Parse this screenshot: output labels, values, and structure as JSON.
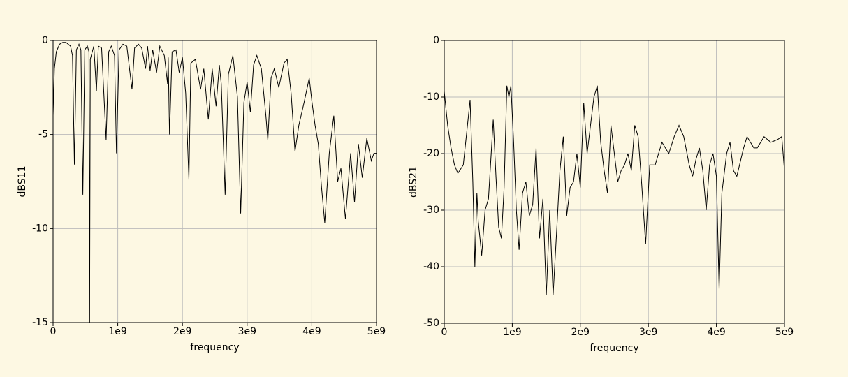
{
  "chart_data": [
    {
      "type": "line",
      "ylabel": "dBS11",
      "xlabel": "frequency",
      "color": "#000000",
      "grid": true,
      "xlim": [
        0,
        5000000000.0
      ],
      "ylim": [
        -15,
        0
      ],
      "xticks": [
        0,
        {
          "value": 1000000000.0,
          "label": "1e9"
        },
        {
          "value": 2000000000.0,
          "label": "2e9"
        },
        {
          "value": 3000000000.0,
          "label": "3e9"
        },
        {
          "value": 4000000000.0,
          "label": "4e9"
        },
        {
          "value": 5000000000.0,
          "label": "5e9"
        }
      ],
      "yticks": [
        0,
        -5,
        -10,
        -15
      ],
      "x": [
        0,
        20000000.0,
        50000000.0,
        100000000.0,
        150000000.0,
        200000000.0,
        270000000.0,
        300000000.0,
        330000000.0,
        360000000.0,
        400000000.0,
        430000000.0,
        460000000.0,
        490000000.0,
        530000000.0,
        555000000.0,
        565000000.0,
        575000000.0,
        590000000.0,
        630000000.0,
        670000000.0,
        700000000.0,
        750000000.0,
        820000000.0,
        860000000.0,
        900000000.0,
        950000000.0,
        980000000.0,
        1020000000.0,
        1080000000.0,
        1140000000.0,
        1220000000.0,
        1260000000.0,
        1320000000.0,
        1370000000.0,
        1430000000.0,
        1460000000.0,
        1500000000.0,
        1540000000.0,
        1600000000.0,
        1650000000.0,
        1720000000.0,
        1770000000.0,
        1780000000.0,
        1800000000.0,
        1840000000.0,
        1900000000.0,
        1950000000.0,
        2000000000.0,
        2050000000.0,
        2100000000.0,
        2130000000.0,
        2200000000.0,
        2280000000.0,
        2330000000.0,
        2400000000.0,
        2460000000.0,
        2520000000.0,
        2570000000.0,
        2600000000.0,
        2660000000.0,
        2710000000.0,
        2780000000.0,
        2850000000.0,
        2900000000.0,
        2950000000.0,
        3000000000.0,
        3050000000.0,
        3100000000.0,
        3150000000.0,
        3220000000.0,
        3290000000.0,
        3320000000.0,
        3370000000.0,
        3420000000.0,
        3490000000.0,
        3570000000.0,
        3620000000.0,
        3680000000.0,
        3740000000.0,
        3800000000.0,
        3880000000.0,
        3960000000.0,
        4000000000.0,
        4050000000.0,
        4100000000.0,
        4150000000.0,
        4200000000.0,
        4270000000.0,
        4340000000.0,
        4400000000.0,
        4450000000.0,
        4520000000.0,
        4600000000.0,
        4660000000.0,
        4720000000.0,
        4780000000.0,
        4850000000.0,
        4920000000.0,
        4960000000.0,
        5000000000.0
      ],
      "values": [
        -4,
        -1.5,
        -0.6,
        -0.2,
        -0.1,
        -0.1,
        -0.3,
        -0.8,
        -6.6,
        -0.5,
        -0.2,
        -0.5,
        -8.2,
        -0.5,
        -0.3,
        -0.6,
        -15,
        -1,
        -0.8,
        -0.3,
        -2.7,
        -0.3,
        -0.4,
        -5.3,
        -0.6,
        -0.3,
        -0.8,
        -6,
        -0.5,
        -0.2,
        -0.3,
        -2.6,
        -0.4,
        -0.2,
        -0.4,
        -1.5,
        -0.3,
        -1.6,
        -0.5,
        -1.7,
        -0.3,
        -0.8,
        -2.3,
        -0.9,
        -5,
        -0.6,
        -0.5,
        -1.7,
        -0.9,
        -2.8,
        -7.4,
        -1.2,
        -1,
        -2.6,
        -1.5,
        -4.2,
        -1.5,
        -3.5,
        -1.3,
        -2.3,
        -8.2,
        -1.8,
        -0.8,
        -3,
        -9.2,
        -3.3,
        -2.2,
        -3.8,
        -1.3,
        -0.8,
        -1.5,
        -4,
        -5.3,
        -2,
        -1.5,
        -2.5,
        -1.2,
        -1,
        -2.8,
        -5.9,
        -4.5,
        -3.3,
        -2,
        -3.2,
        -4.5,
        -5.5,
        -7.8,
        -9.7,
        -6,
        -4,
        -7.5,
        -6.8,
        -9.5,
        -6,
        -8.6,
        -5.5,
        -7.3,
        -5.2,
        -6.4,
        -6,
        -6
      ]
    },
    {
      "type": "line",
      "ylabel": "dBS21",
      "xlabel": "frequency",
      "color": "#000000",
      "grid": true,
      "xlim": [
        0,
        5000000000.0
      ],
      "ylim": [
        -50,
        0
      ],
      "xticks": [
        0,
        {
          "value": 1000000000.0,
          "label": "1e9"
        },
        {
          "value": 2000000000.0,
          "label": "2e9"
        },
        {
          "value": 3000000000.0,
          "label": "3e9"
        },
        {
          "value": 4000000000.0,
          "label": "4e9"
        },
        {
          "value": 5000000000.0,
          "label": "5e9"
        }
      ],
      "yticks": [
        0,
        -10,
        -20,
        -30,
        -40,
        -50
      ],
      "x": [
        0,
        50000000.0,
        100000000.0,
        150000000.0,
        200000000.0,
        280000000.0,
        350000000.0,
        380000000.0,
        420000000.0,
        450000000.0,
        480000000.0,
        500000000.0,
        550000000.0,
        600000000.0,
        650000000.0,
        680000000.0,
        720000000.0,
        760000000.0,
        800000000.0,
        840000000.0,
        880000000.0,
        920000000.0,
        950000000.0,
        980000000.0,
        1020000000.0,
        1060000000.0,
        1100000000.0,
        1150000000.0,
        1200000000.0,
        1250000000.0,
        1300000000.0,
        1350000000.0,
        1400000000.0,
        1450000000.0,
        1500000000.0,
        1550000000.0,
        1600000000.0,
        1660000000.0,
        1700000000.0,
        1750000000.0,
        1800000000.0,
        1850000000.0,
        1900000000.0,
        1950000000.0,
        2000000000.0,
        2050000000.0,
        2100000000.0,
        2150000000.0,
        2200000000.0,
        2250000000.0,
        2300000000.0,
        2350000000.0,
        2400000000.0,
        2450000000.0,
        2500000000.0,
        2550000000.0,
        2600000000.0,
        2650000000.0,
        2700000000.0,
        2750000000.0,
        2800000000.0,
        2850000000.0,
        2900000000.0,
        2960000000.0,
        3020000000.0,
        3100000000.0,
        3200000000.0,
        3300000000.0,
        3380000000.0,
        3450000000.0,
        3520000000.0,
        3600000000.0,
        3650000000.0,
        3700000000.0,
        3750000000.0,
        3800000000.0,
        3850000000.0,
        3900000000.0,
        3950000000.0,
        4000000000.0,
        4040000000.0,
        4080000000.0,
        4150000000.0,
        4200000000.0,
        4250000000.0,
        4300000000.0,
        4400000000.0,
        4450000000.0,
        4500000000.0,
        4550000000.0,
        4600000000.0,
        4700000000.0,
        4800000000.0,
        4900000000.0,
        4960000000.0,
        5000000000.0
      ],
      "values": [
        -9,
        -15,
        -19,
        -22,
        -23.5,
        -22,
        -14,
        -10.5,
        -25,
        -40,
        -27,
        -32,
        -38,
        -30,
        -28,
        -22,
        -14,
        -24,
        -33,
        -35,
        -26,
        -8,
        -10,
        -8,
        -18,
        -30,
        -37,
        -27,
        -25,
        -31,
        -29,
        -19,
        -35,
        -28,
        -45,
        -30,
        -45,
        -32,
        -23,
        -17,
        -31,
        -26,
        -25,
        -20,
        -26,
        -11,
        -20,
        -15,
        -10,
        -8,
        -18,
        -23,
        -27,
        -15,
        -20,
        -25,
        -23,
        -22,
        -20,
        -23,
        -15,
        -17,
        -25,
        -36,
        -22,
        -22,
        -18,
        -20,
        -17,
        -15,
        -17,
        -22,
        -24,
        -21,
        -19,
        -23,
        -30,
        -22,
        -20,
        -24,
        -44,
        -27,
        -20,
        -18,
        -23,
        -24,
        -19,
        -17,
        -18,
        -19,
        -19,
        -17,
        -18,
        -17.5,
        -17,
        -23
      ]
    }
  ]
}
